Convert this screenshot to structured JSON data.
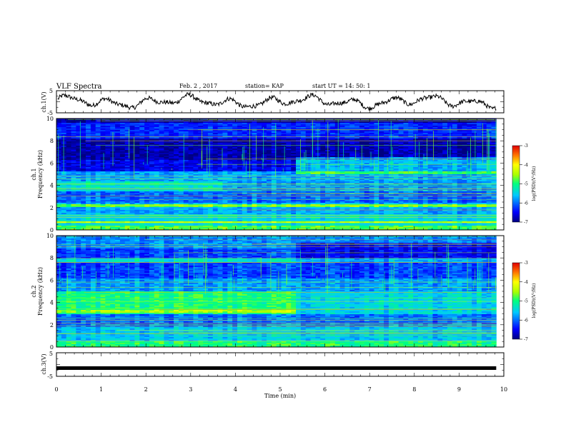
{
  "header": {
    "title": "VLF Spectra",
    "date": "Feb. 2 , 2017",
    "station": "station= KAP",
    "start": "start  UT =   14: 50: 1"
  },
  "chart_data": [
    {
      "id": "ch1-voltage",
      "type": "line",
      "ylabel": "ch.1(V)",
      "ylim": [
        -5,
        5
      ],
      "yticks": [
        "5",
        "-5"
      ],
      "xlim": [
        0,
        10
      ],
      "x_end": 9.83,
      "series_description": "oscillating trace around 0 V"
    },
    {
      "id": "ch1-spectrogram",
      "type": "heatmap",
      "ylabel": "ch.1",
      "ylabel2": "Frequency (kHz)",
      "ylim": [
        0,
        10
      ],
      "yticks": [
        "0",
        "2",
        "4",
        "6",
        "8",
        "10"
      ],
      "xlim": [
        0,
        10
      ],
      "x_end": 9.83,
      "colorbar": {
        "label": "log(PSD)(V²/Hz)",
        "range": [
          -7,
          -3
        ],
        "ticks": [
          "-3",
          "-4",
          "-5",
          "-6",
          "-7"
        ]
      }
    },
    {
      "id": "ch2-spectrogram",
      "type": "heatmap",
      "ylabel": "ch.2",
      "ylabel2": "Frequency (kHz)",
      "ylim": [
        0,
        10
      ],
      "yticks": [
        "0",
        "2",
        "4",
        "6",
        "8",
        "10"
      ],
      "xlim": [
        0,
        10
      ],
      "x_end": 9.83,
      "colorbar": {
        "label": "log(PSD)(V²/Hz)",
        "range": [
          -7,
          -3
        ],
        "ticks": [
          "-3",
          "-4",
          "-5",
          "-6",
          "-7"
        ]
      }
    },
    {
      "id": "ch3-voltage",
      "type": "line",
      "ylabel": "ch.3(V)",
      "ylim": [
        -5,
        5
      ],
      "yticks": [
        "5",
        "-5"
      ],
      "xlim": [
        0,
        10
      ],
      "x_end": 9.83,
      "values_constant": -1.5,
      "xlabel": "Time (min)",
      "xticks": [
        "0",
        "1",
        "2",
        "3",
        "4",
        "5",
        "6",
        "7",
        "8",
        "9",
        "10"
      ]
    }
  ],
  "colors": {
    "trace": "#000000",
    "axis": "#000000"
  }
}
